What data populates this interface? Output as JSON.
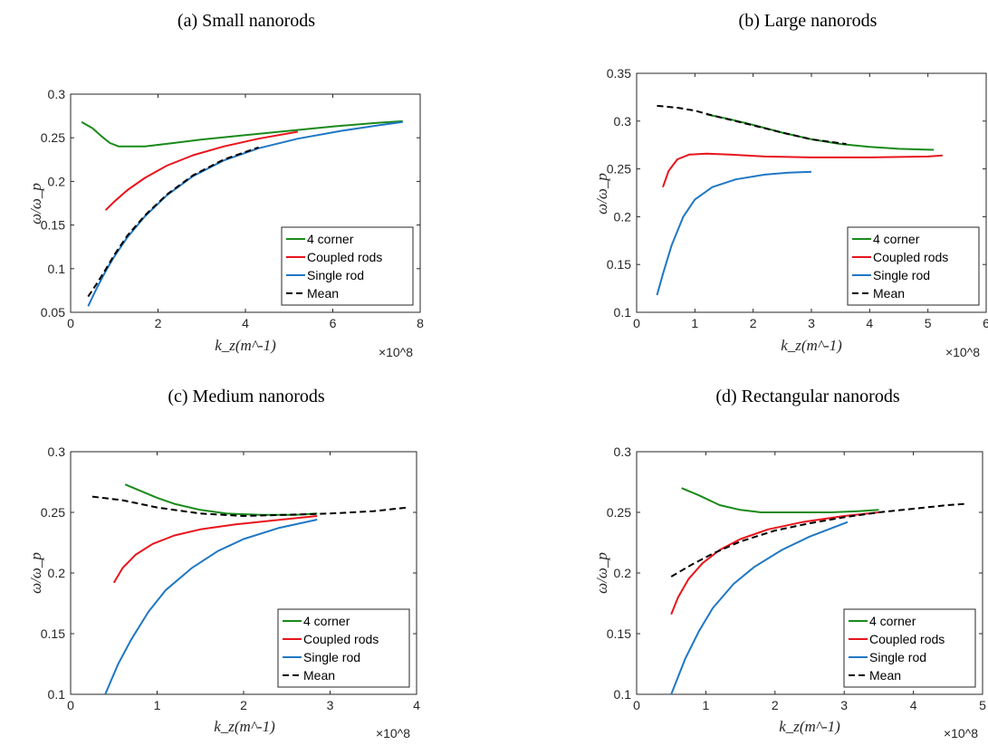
{
  "chart_data": [
    {
      "type": "line",
      "title": "(a) Small nanorods",
      "xlabel": "k_z(m^-1)",
      "ylabel": "ω/ω_p",
      "x_multiplier": "×10^8",
      "xlim": [
        0,
        8
      ],
      "ylim": [
        0.05,
        0.3
      ],
      "xticks": [
        "0",
        "2",
        "4",
        "6",
        "8"
      ],
      "yticks": [
        "0.05",
        "0.1",
        "0.15",
        "0.2",
        "0.25",
        "0.3"
      ],
      "legend_position": "lower-right",
      "series": [
        {
          "name": "4 corner",
          "color": "#1a8a1a",
          "dash": "solid",
          "points": [
            [
              0.25,
              0.268
            ],
            [
              0.5,
              0.261
            ],
            [
              0.7,
              0.252
            ],
            [
              0.9,
              0.244
            ],
            [
              1.1,
              0.24
            ],
            [
              1.4,
              0.24
            ],
            [
              1.7,
              0.24
            ],
            [
              2.2,
              0.243
            ],
            [
              3,
              0.248
            ],
            [
              4,
              0.253
            ],
            [
              5,
              0.258
            ],
            [
              6,
              0.263
            ],
            [
              7,
              0.267
            ],
            [
              7.6,
              0.269
            ]
          ]
        },
        {
          "name": "Coupled rods",
          "color": "#e8141c",
          "dash": "solid",
          "points": [
            [
              0.8,
              0.167
            ],
            [
              1.0,
              0.177
            ],
            [
              1.3,
              0.19
            ],
            [
              1.7,
              0.204
            ],
            [
              2.2,
              0.218
            ],
            [
              2.8,
              0.23
            ],
            [
              3.5,
              0.24
            ],
            [
              4.3,
              0.249
            ],
            [
              5.2,
              0.257
            ]
          ]
        },
        {
          "name": "Single rod",
          "color": "#1f77c4",
          "dash": "solid",
          "points": [
            [
              0.4,
              0.057
            ],
            [
              0.6,
              0.078
            ],
            [
              0.8,
              0.097
            ],
            [
              1.0,
              0.114
            ],
            [
              1.3,
              0.136
            ],
            [
              1.7,
              0.16
            ],
            [
              2.2,
              0.184
            ],
            [
              2.8,
              0.206
            ],
            [
              3.5,
              0.224
            ],
            [
              4.3,
              0.238
            ],
            [
              5.2,
              0.249
            ],
            [
              6.2,
              0.258
            ],
            [
              7.0,
              0.264
            ],
            [
              7.6,
              0.268
            ]
          ]
        },
        {
          "name": "Mean",
          "color": "#000000",
          "dash": "dashed",
          "points": [
            [
              0.4,
              0.068
            ],
            [
              0.6,
              0.083
            ],
            [
              0.8,
              0.099
            ],
            [
              1.0,
              0.116
            ],
            [
              1.3,
              0.138
            ],
            [
              1.7,
              0.161
            ],
            [
              2.2,
              0.185
            ],
            [
              2.8,
              0.207
            ],
            [
              3.5,
              0.225
            ],
            [
              4.3,
              0.239
            ]
          ]
        }
      ]
    },
    {
      "type": "line",
      "title": "(b) Large nanorods",
      "xlabel": "k_z(m^-1)",
      "ylabel": "ω/ω_p",
      "x_multiplier": "×10^8",
      "xlim": [
        0,
        6
      ],
      "ylim": [
        0.1,
        0.35
      ],
      "xticks": [
        "0",
        "1",
        "2",
        "3",
        "4",
        "5",
        "6"
      ],
      "yticks": [
        "0.1",
        "0.15",
        "0.2",
        "0.25",
        "0.3",
        "0.35"
      ],
      "legend_position": "lower-right",
      "series": [
        {
          "name": "4 corner",
          "color": "#1a8a1a",
          "dash": "solid",
          "points": [
            [
              1.2,
              0.307
            ],
            [
              1.6,
              0.302
            ],
            [
              2.0,
              0.296
            ],
            [
              2.5,
              0.288
            ],
            [
              3.0,
              0.281
            ],
            [
              3.5,
              0.276
            ],
            [
              4.0,
              0.273
            ],
            [
              4.5,
              0.271
            ],
            [
              5.1,
              0.27
            ]
          ]
        },
        {
          "name": "Coupled rods",
          "color": "#e8141c",
          "dash": "solid",
          "points": [
            [
              0.45,
              0.231
            ],
            [
              0.55,
              0.248
            ],
            [
              0.7,
              0.26
            ],
            [
              0.9,
              0.265
            ],
            [
              1.2,
              0.266
            ],
            [
              1.6,
              0.265
            ],
            [
              2.2,
              0.263
            ],
            [
              3,
              0.262
            ],
            [
              4,
              0.262
            ],
            [
              5,
              0.263
            ],
            [
              5.25,
              0.264
            ]
          ]
        },
        {
          "name": "Single rod",
          "color": "#1f77c4",
          "dash": "solid",
          "points": [
            [
              0.35,
              0.118
            ],
            [
              0.45,
              0.14
            ],
            [
              0.6,
              0.17
            ],
            [
              0.8,
              0.2
            ],
            [
              1.0,
              0.218
            ],
            [
              1.3,
              0.231
            ],
            [
              1.7,
              0.239
            ],
            [
              2.2,
              0.244
            ],
            [
              2.6,
              0.246
            ],
            [
              3.0,
              0.247
            ]
          ]
        },
        {
          "name": "Mean",
          "color": "#000000",
          "dash": "dashed",
          "points": [
            [
              0.35,
              0.316
            ],
            [
              0.7,
              0.314
            ],
            [
              1.0,
              0.311
            ],
            [
              1.3,
              0.306
            ],
            [
              1.7,
              0.3
            ],
            [
              2.1,
              0.294
            ],
            [
              2.5,
              0.288
            ],
            [
              3.0,
              0.281
            ],
            [
              3.6,
              0.276
            ]
          ]
        }
      ]
    },
    {
      "type": "line",
      "title": "(c) Medium nanorods",
      "xlabel": "k_z(m^-1)",
      "ylabel": "ω/ω_p",
      "x_multiplier": "×10^8",
      "xlim": [
        0,
        4
      ],
      "ylim": [
        0.1,
        0.3
      ],
      "xticks": [
        "0",
        "1",
        "2",
        "3",
        "4"
      ],
      "yticks": [
        "0.1",
        "0.15",
        "0.2",
        "0.25",
        "0.3"
      ],
      "legend_position": "lower-right",
      "series": [
        {
          "name": "4 corner",
          "color": "#1a8a1a",
          "dash": "solid",
          "points": [
            [
              0.63,
              0.273
            ],
            [
              0.8,
              0.268
            ],
            [
              1.0,
              0.262
            ],
            [
              1.2,
              0.257
            ],
            [
              1.5,
              0.252
            ],
            [
              1.8,
              0.249
            ],
            [
              2.2,
              0.248
            ],
            [
              2.6,
              0.248
            ],
            [
              2.85,
              0.249
            ]
          ]
        },
        {
          "name": "Coupled rods",
          "color": "#e8141c",
          "dash": "solid",
          "points": [
            [
              0.5,
              0.192
            ],
            [
              0.6,
              0.204
            ],
            [
              0.75,
              0.215
            ],
            [
              0.95,
              0.224
            ],
            [
              1.2,
              0.231
            ],
            [
              1.5,
              0.236
            ],
            [
              1.9,
              0.24
            ],
            [
              2.3,
              0.243
            ],
            [
              2.85,
              0.247
            ]
          ]
        },
        {
          "name": "Single rod",
          "color": "#1f77c4",
          "dash": "solid",
          "points": [
            [
              0.4,
              0.1
            ],
            [
              0.55,
              0.125
            ],
            [
              0.7,
              0.145
            ],
            [
              0.9,
              0.168
            ],
            [
              1.1,
              0.186
            ],
            [
              1.4,
              0.204
            ],
            [
              1.7,
              0.218
            ],
            [
              2.0,
              0.228
            ],
            [
              2.4,
              0.237
            ],
            [
              2.85,
              0.244
            ]
          ]
        },
        {
          "name": "Mean",
          "color": "#000000",
          "dash": "dashed",
          "points": [
            [
              0.25,
              0.263
            ],
            [
              0.6,
              0.26
            ],
            [
              1.0,
              0.254
            ],
            [
              1.5,
              0.249
            ],
            [
              2.0,
              0.247
            ],
            [
              2.5,
              0.248
            ],
            [
              3.0,
              0.249
            ],
            [
              3.5,
              0.251
            ],
            [
              3.9,
              0.254
            ]
          ]
        }
      ]
    },
    {
      "type": "line",
      "title": "(d) Rectangular nanorods",
      "xlabel": "k_z(m^-1)",
      "ylabel": "ω/ω_p",
      "x_multiplier": "×10^8",
      "xlim": [
        0,
        5
      ],
      "ylim": [
        0.1,
        0.3
      ],
      "xticks": [
        "0",
        "1",
        "2",
        "3",
        "4",
        "5"
      ],
      "yticks": [
        "0.1",
        "0.15",
        "0.2",
        "0.25",
        "0.3"
      ],
      "legend_position": "lower-right",
      "series": [
        {
          "name": "4 corner",
          "color": "#1a8a1a",
          "dash": "solid",
          "points": [
            [
              0.65,
              0.27
            ],
            [
              0.9,
              0.264
            ],
            [
              1.2,
              0.256
            ],
            [
              1.5,
              0.252
            ],
            [
              1.8,
              0.25
            ],
            [
              2.3,
              0.25
            ],
            [
              2.8,
              0.25
            ],
            [
              3.2,
              0.251
            ],
            [
              3.5,
              0.252
            ]
          ]
        },
        {
          "name": "Coupled rods",
          "color": "#e8141c",
          "dash": "solid",
          "points": [
            [
              0.5,
              0.166
            ],
            [
              0.6,
              0.18
            ],
            [
              0.75,
              0.195
            ],
            [
              0.95,
              0.208
            ],
            [
              1.2,
              0.219
            ],
            [
              1.5,
              0.228
            ],
            [
              1.9,
              0.236
            ],
            [
              2.4,
              0.242
            ],
            [
              3.0,
              0.247
            ],
            [
              3.5,
              0.25
            ]
          ]
        },
        {
          "name": "Single rod",
          "color": "#1f77c4",
          "dash": "solid",
          "points": [
            [
              0.5,
              0.1
            ],
            [
              0.7,
              0.129
            ],
            [
              0.9,
              0.152
            ],
            [
              1.1,
              0.171
            ],
            [
              1.4,
              0.191
            ],
            [
              1.7,
              0.205
            ],
            [
              2.1,
              0.219
            ],
            [
              2.5,
              0.23
            ],
            [
              3.05,
              0.242
            ]
          ]
        },
        {
          "name": "Mean",
          "color": "#000000",
          "dash": "dashed",
          "points": [
            [
              0.5,
              0.197
            ],
            [
              0.8,
              0.207
            ],
            [
              1.1,
              0.216
            ],
            [
              1.5,
              0.226
            ],
            [
              2.0,
              0.235
            ],
            [
              2.5,
              0.241
            ],
            [
              3.0,
              0.246
            ],
            [
              3.5,
              0.25
            ],
            [
              4.0,
              0.253
            ],
            [
              4.5,
              0.256
            ],
            [
              4.75,
              0.257
            ]
          ]
        }
      ]
    }
  ]
}
